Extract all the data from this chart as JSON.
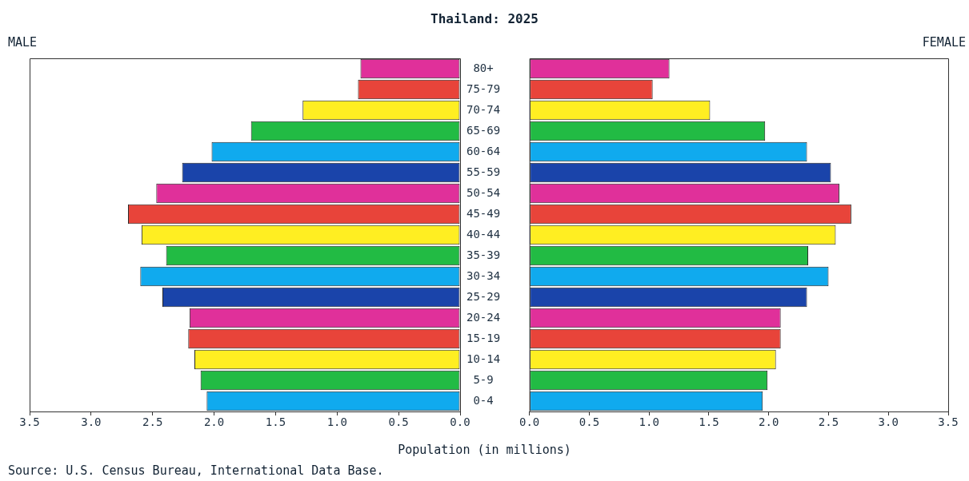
{
  "chart_data": [
    {
      "type": "bar",
      "orientation": "horizontal",
      "title": "Thailand: 2025",
      "subtitle": "MALE",
      "xlabel": "Population (in millions)",
      "categories": [
        "80+",
        "75-79",
        "70-74",
        "65-69",
        "60-64",
        "55-59",
        "50-54",
        "45-49",
        "40-44",
        "35-39",
        "30-34",
        "25-29",
        "20-24",
        "15-19",
        "10-14",
        "5-9",
        "0-4"
      ],
      "values": [
        0.81,
        0.83,
        1.28,
        1.7,
        2.02,
        2.26,
        2.47,
        2.7,
        2.59,
        2.39,
        2.6,
        2.42,
        2.2,
        2.21,
        2.16,
        2.11,
        2.06
      ],
      "colors": [
        "#e0309a",
        "#e8443a",
        "#ffee22",
        "#22bb44",
        "#10aaee",
        "#1a44aa",
        "#e0309a",
        "#e8443a",
        "#ffee22",
        "#22bb44",
        "#10aaee",
        "#1a44aa",
        "#e0309a",
        "#e8443a",
        "#ffee22",
        "#22bb44",
        "#10aaee"
      ],
      "xlim": [
        3.5,
        0
      ],
      "xticks": [
        {
          "value": 3.5,
          "label": "3.5"
        },
        {
          "value": 3,
          "label": "3.0"
        },
        {
          "value": 2.5,
          "label": "2.5"
        },
        {
          "value": 2,
          "label": "2.0"
        },
        {
          "value": 1.5,
          "label": "1.5"
        },
        {
          "value": 1,
          "label": "1.0"
        },
        {
          "value": 0.5,
          "label": "0.5"
        },
        {
          "value": 0,
          "label": "0.0"
        }
      ],
      "annotations": [
        "Source: U.S. Census Bureau, International Data Base."
      ]
    },
    {
      "type": "bar",
      "orientation": "horizontal",
      "subtitle": "FEMALE",
      "tick_labels": "x",
      "categories": [
        "80+",
        "75-79",
        "70-74",
        "65-69",
        "60-64",
        "55-59",
        "50-54",
        "45-49",
        "40-44",
        "35-39",
        "30-34",
        "25-29",
        "20-24",
        "15-19",
        "10-14",
        "5-9",
        "0-4"
      ],
      "values": [
        1.17,
        1.03,
        1.51,
        1.97,
        2.32,
        2.52,
        2.59,
        2.69,
        2.56,
        2.33,
        2.5,
        2.32,
        2.1,
        2.1,
        2.06,
        1.99,
        1.95
      ],
      "colors": [
        "#e0309a",
        "#e8443a",
        "#ffee22",
        "#22bb44",
        "#10aaee",
        "#1a44aa",
        "#e0309a",
        "#e8443a",
        "#ffee22",
        "#22bb44",
        "#10aaee",
        "#1a44aa",
        "#e0309a",
        "#e8443a",
        "#ffee22",
        "#22bb44",
        "#10aaee"
      ],
      "xlim": [
        0,
        3.5
      ],
      "xticks": [
        {
          "value": 0,
          "label": "0.0"
        },
        {
          "value": 0.5,
          "label": "0.5"
        },
        {
          "value": 1,
          "label": "1.0"
        },
        {
          "value": 1.5,
          "label": "1.5"
        },
        {
          "value": 2,
          "label": "2.0"
        },
        {
          "value": 2.5,
          "label": "2.5"
        },
        {
          "value": 3,
          "label": "3.0"
        },
        {
          "value": 3.5,
          "label": "3.5"
        }
      ]
    }
  ]
}
